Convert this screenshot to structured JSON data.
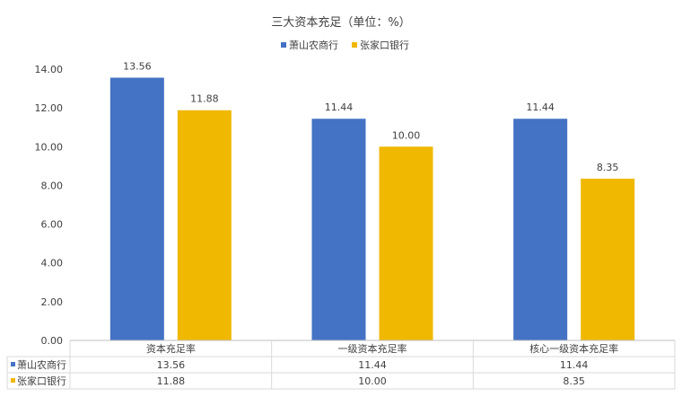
{
  "chart_data": {
    "type": "bar",
    "title": "三大资本充足（单位：%）",
    "categories": [
      "资本充足率",
      "一级资本充足率",
      "核心一级资本充足率"
    ],
    "series": [
      {
        "name": "萧山农商行",
        "color": "#4472C4",
        "values": [
          13.56,
          11.44,
          11.44
        ]
      },
      {
        "name": "张家口银行",
        "color": "#F0B800",
        "values": [
          11.88,
          10.0,
          8.35
        ]
      }
    ],
    "ylim": [
      0,
      14
    ],
    "yticks": [
      "0.00",
      "2.00",
      "4.00",
      "6.00",
      "8.00",
      "10.00",
      "12.00",
      "14.00"
    ],
    "data_labels": [
      [
        "13.56",
        "11.44",
        "11.44"
      ],
      [
        "11.88",
        "10.00",
        "8.35"
      ]
    ],
    "legend_position": "top-center",
    "data_table": true,
    "grid": false
  }
}
